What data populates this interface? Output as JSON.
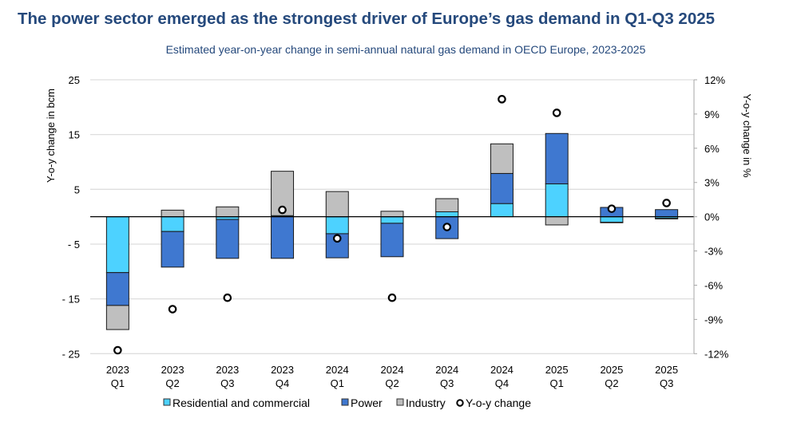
{
  "chart_data": {
    "type": "bar",
    "stacked": true,
    "title": "The power sector emerged as the strongest driver of Europe’s gas demand in Q1-Q3 2025",
    "subtitle": "Estimated year-on-year change in semi-annual natural gas demand in OECD Europe, 2023-2025",
    "ylabel": "Y-o-y change in bcm",
    "y2label": "Y-o-y change in %",
    "ylim": [
      -25,
      25
    ],
    "yticks": [
      25,
      15,
      5,
      -5,
      -15,
      -25
    ],
    "ytick_labels": [
      "25",
      "15",
      "5",
      "- 5",
      "- 15",
      "- 25"
    ],
    "y2lim": [
      -12,
      12
    ],
    "y2ticks": [
      12,
      9,
      6,
      3,
      0,
      -3,
      -6,
      -9,
      -12
    ],
    "y2tick_labels": [
      "12%",
      "9%",
      "6%",
      "3%",
      "0%",
      "-3%",
      "-6%",
      "-9%",
      "-12%"
    ],
    "grid": true,
    "legend_position": "bottom",
    "categories": [
      [
        "2023",
        "Q1"
      ],
      [
        "2023",
        "Q2"
      ],
      [
        "2023",
        "Q3"
      ],
      [
        "2023",
        "Q4"
      ],
      [
        "2024",
        "Q1"
      ],
      [
        "2024",
        "Q2"
      ],
      [
        "2024",
        "Q3"
      ],
      [
        "2024",
        "Q4"
      ],
      [
        "2025",
        "Q1"
      ],
      [
        "2025",
        "Q2"
      ],
      [
        "2025",
        "Q3"
      ]
    ],
    "series": [
      {
        "name": "Residential and commercial",
        "color": "#4dd2ff",
        "axis": "left",
        "values": [
          -10.2,
          -2.7,
          -0.5,
          0.2,
          -3.1,
          -1.2,
          0.9,
          2.4,
          6.0,
          -1.0,
          -0.3
        ]
      },
      {
        "name": "Power",
        "color": "#3f78d0",
        "axis": "left",
        "values": [
          -6.0,
          -6.5,
          -7.1,
          -7.6,
          -4.4,
          -6.1,
          -4.0,
          5.5,
          9.2,
          1.7,
          1.3
        ]
      },
      {
        "name": "Industry",
        "color": "#bfbfbf",
        "axis": "left",
        "values": [
          -4.4,
          1.2,
          1.8,
          8.1,
          4.6,
          1.0,
          2.4,
          5.4,
          -1.5,
          -0.1,
          -0.1
        ]
      },
      {
        "name": "Y-o-y change",
        "type": "scatter",
        "axis": "right",
        "unit": "%",
        "values": [
          -11.7,
          -8.1,
          -7.1,
          0.6,
          -1.9,
          -7.1,
          -0.9,
          10.3,
          9.1,
          0.7,
          1.2
        ]
      }
    ]
  }
}
